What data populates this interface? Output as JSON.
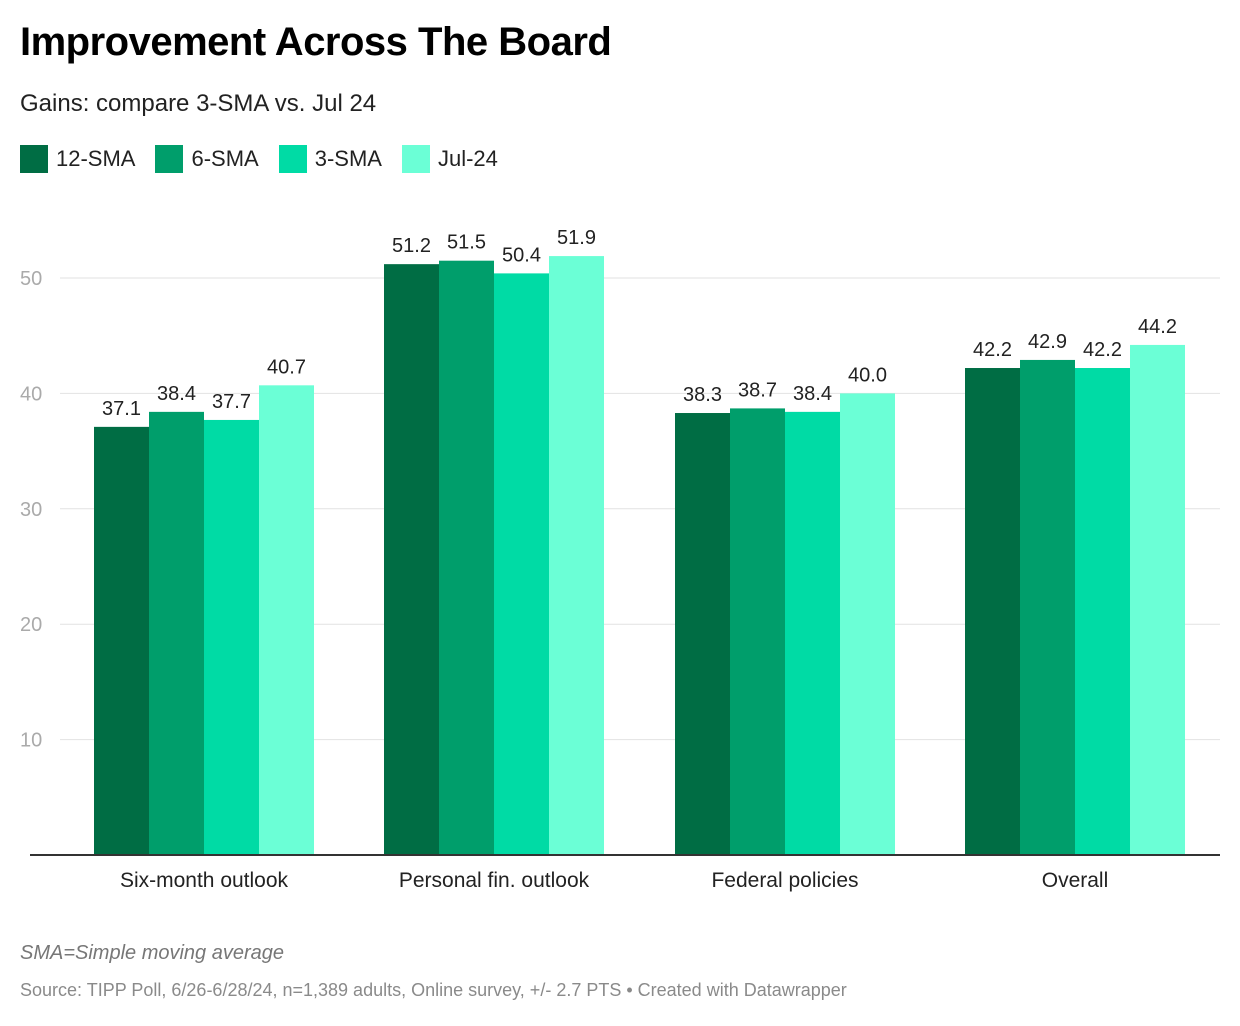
{
  "title": "Improvement Across The Board",
  "subtitle": "Gains: compare 3-SMA vs. Jul 24",
  "note": "SMA=Simple moving average",
  "source": "Source: TIPP Poll, 6/26-6/28/24, n=1,389 adults, Online survey, +/- 2.7 PTS • Created with Datawrapper",
  "chart_data": {
    "type": "bar",
    "categories": [
      "Six-month outlook",
      "Personal fin. outlook",
      "Federal policies",
      "Overall"
    ],
    "series": [
      {
        "name": "12-SMA",
        "color": "#006d44",
        "values": [
          37.1,
          51.2,
          38.3,
          42.2
        ]
      },
      {
        "name": "6-SMA",
        "color": "#009e6b",
        "values": [
          38.4,
          51.5,
          38.7,
          42.9
        ]
      },
      {
        "name": "3-SMA",
        "color": "#00dba5",
        "values": [
          37.7,
          50.4,
          38.4,
          42.2
        ]
      },
      {
        "name": "Jul-24",
        "color": "#6bffd6",
        "values": [
          40.7,
          51.9,
          40.0,
          44.2
        ]
      }
    ],
    "yticks": [
      10,
      20,
      30,
      40,
      50
    ],
    "ylim": [
      0,
      54
    ],
    "grid": true,
    "legend_position": "top-left"
  }
}
